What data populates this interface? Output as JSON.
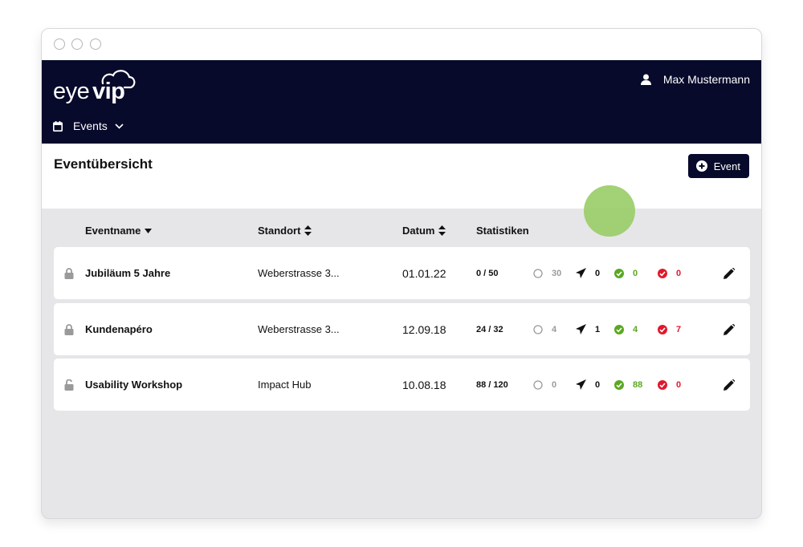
{
  "app": {
    "brand": "eyevip",
    "user_name": "Max Mustermann",
    "nav_menu": "Events"
  },
  "page": {
    "title": "Eventübersicht",
    "add_button_label": "Event"
  },
  "table": {
    "headers": {
      "name": "Eventname",
      "location": "Standort",
      "date": "Datum",
      "stats": "Statistiken"
    },
    "rows": [
      {
        "locked": true,
        "name": "Jubiläum 5 Jahre",
        "location": "Weberstrasse 3...",
        "date": "01.01.22",
        "ratio": "0 / 50",
        "open": "30",
        "sent": "0",
        "accepted": "0",
        "declined": "0"
      },
      {
        "locked": true,
        "name": "Kundenapéro",
        "location": "Weberstrasse 3...",
        "date": "12.09.18",
        "ratio": "24 / 32",
        "open": "4",
        "sent": "1",
        "accepted": "4",
        "declined": "7"
      },
      {
        "locked": false,
        "name": "Usability Workshop",
        "location": "Impact Hub",
        "date": "10.08.18",
        "ratio": "88 / 120",
        "open": "0",
        "sent": "0",
        "accepted": "88",
        "declined": "0"
      }
    ]
  },
  "colors": {
    "navbar": "#070a2b",
    "background": "#e6e6e9",
    "accepted": "#5aa820",
    "declined": "#e0192b",
    "open": "#9a9a9a",
    "cursor_highlight": "#99cc66"
  },
  "icons": [
    "user-icon",
    "calendar-icon",
    "chevron-down-icon",
    "plus-circle-icon",
    "sort-down-icon",
    "sort-both-icon",
    "lock-icon",
    "unlock-icon",
    "circle-outline-icon",
    "paper-plane-icon",
    "check-circle-icon",
    "cross-circle-icon",
    "pencil-icon"
  ]
}
